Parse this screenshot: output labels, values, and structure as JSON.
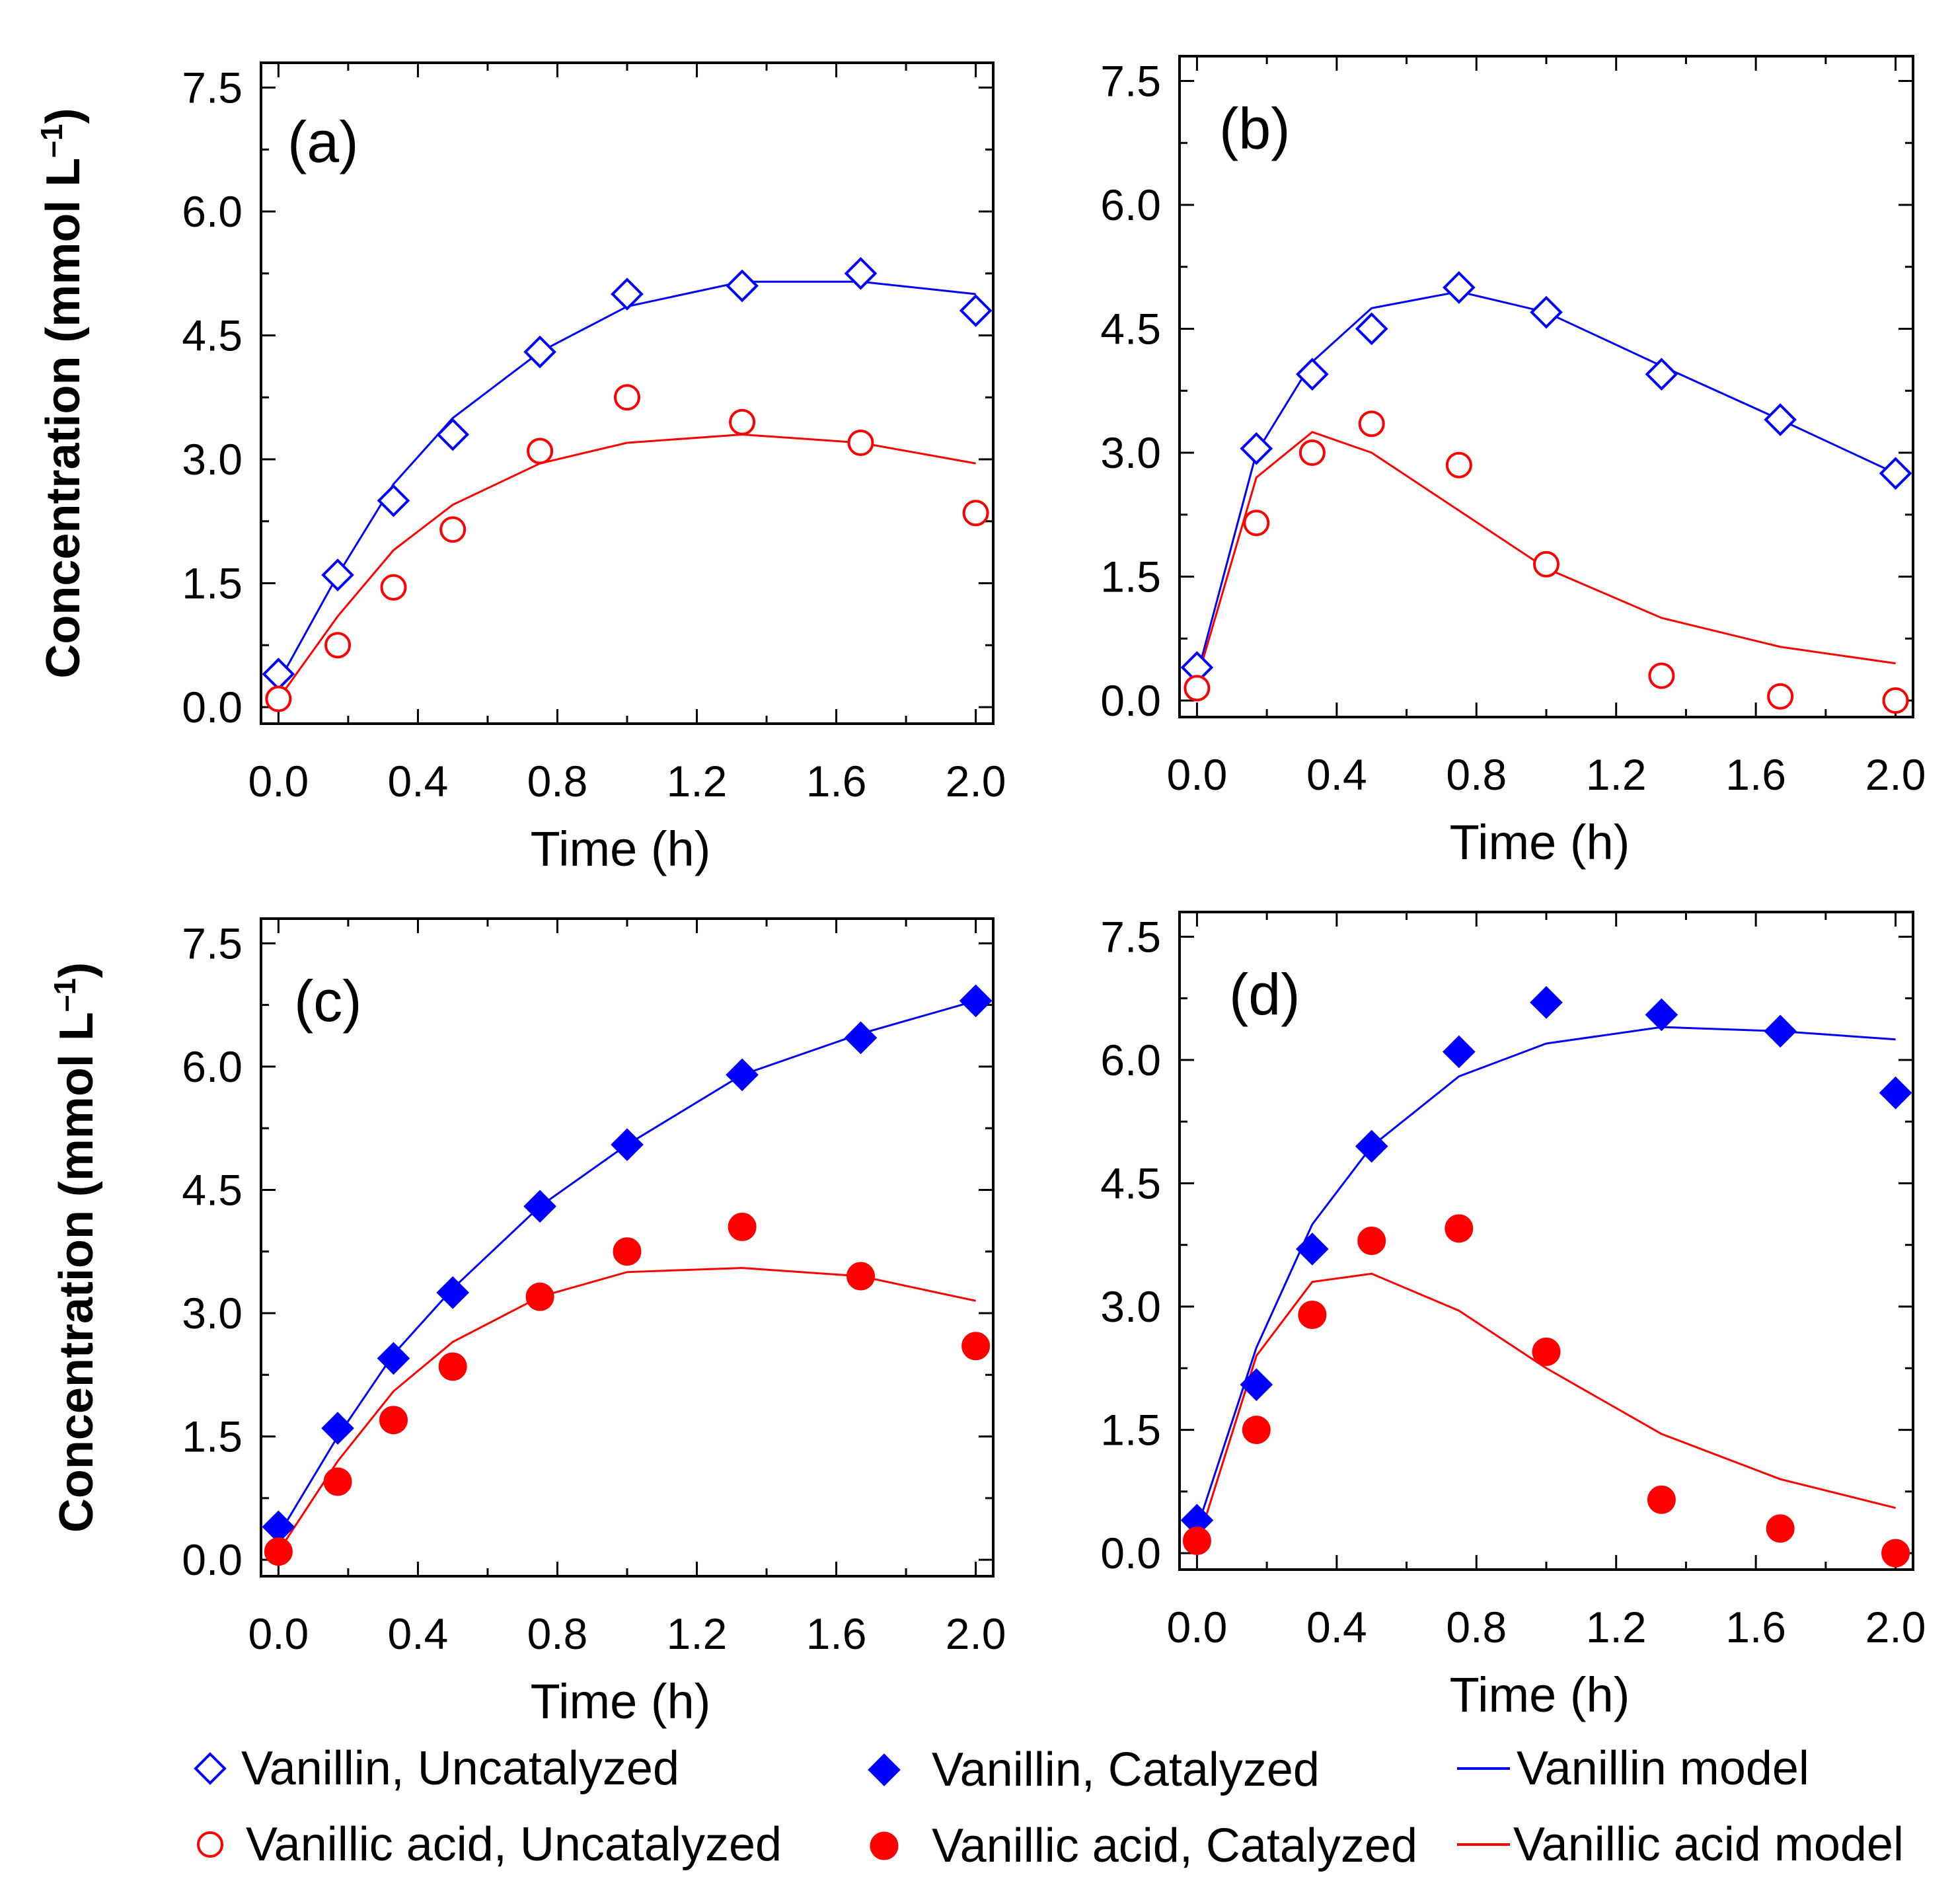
{
  "colors": {
    "vanillin": "#0000ff",
    "vanillic_acid": "#ff0000",
    "axis": "#000000"
  },
  "legend": {
    "items": [
      {
        "label": "Vanillin, Uncatalyzed",
        "marker": "diamond-open",
        "color": "#0000ff"
      },
      {
        "label": "Vanillic acid, Uncatalyzed",
        "marker": "circle-open",
        "color": "#ff0000"
      },
      {
        "label": "Vanillin, Catalyzed",
        "marker": "diamond-filled",
        "color": "#0000ff"
      },
      {
        "label": "Vanillic acid, Catalyzed",
        "marker": "circle-filled",
        "color": "#ff0000"
      },
      {
        "label": "Vanillin model",
        "marker": "line",
        "color": "#0000ff"
      },
      {
        "label": "Vanillic acid model",
        "marker": "line",
        "color": "#ff0000"
      }
    ]
  },
  "chart_data": [
    {
      "type": "scatter",
      "panel_label": "(a)",
      "xlabel": "Time (h)",
      "ylabel": "Concentration (mmol L",
      "ylabel_sup": "–1",
      "ylabel_close": ")",
      "xlim": [
        -0.05,
        2.05
      ],
      "ylim": [
        -0.2,
        7.8
      ],
      "xticks": [
        "0.0",
        "0.4",
        "0.8",
        "1.2",
        "1.6",
        "2.0"
      ],
      "yticks": [
        "0.0",
        "1.5",
        "3.0",
        "4.5",
        "6.0",
        "7.5"
      ],
      "catalyzed": false,
      "series": [
        {
          "name": "Vanillin, Uncatalyzed",
          "color": "#0000ff",
          "marker": "diamond-open",
          "x": [
            0.0,
            0.17,
            0.33,
            0.5,
            0.75,
            1.0,
            1.33,
            1.67,
            2.0
          ],
          "y": [
            0.4,
            1.6,
            2.5,
            3.3,
            4.3,
            5.0,
            5.1,
            5.25,
            4.8
          ]
        },
        {
          "name": "Vanillic acid, Uncatalyzed",
          "color": "#ff0000",
          "marker": "circle-open",
          "x": [
            0.0,
            0.17,
            0.33,
            0.5,
            0.75,
            1.0,
            1.33,
            1.67,
            2.0
          ],
          "y": [
            0.1,
            0.75,
            1.45,
            2.15,
            3.1,
            3.75,
            3.45,
            3.2,
            2.35
          ]
        },
        {
          "name": "Vanillin model",
          "color": "#0000ff",
          "marker": "line",
          "x": [
            0.0,
            0.17,
            0.33,
            0.5,
            0.75,
            1.0,
            1.33,
            1.67,
            2.0
          ],
          "y": [
            0.3,
            1.6,
            2.7,
            3.5,
            4.3,
            4.85,
            5.15,
            5.15,
            5.0
          ]
        },
        {
          "name": "Vanillic acid model",
          "color": "#ff0000",
          "marker": "line",
          "x": [
            0.0,
            0.17,
            0.33,
            0.5,
            0.75,
            1.0,
            1.33,
            1.67,
            2.0
          ],
          "y": [
            0.1,
            1.1,
            1.9,
            2.45,
            2.95,
            3.2,
            3.3,
            3.2,
            2.95
          ]
        }
      ]
    },
    {
      "type": "scatter",
      "panel_label": "(b)",
      "xlabel": "Time (h)",
      "ylabel": "",
      "ylabel_sup": "",
      "ylabel_close": "",
      "xlim": [
        -0.05,
        2.05
      ],
      "ylim": [
        -0.2,
        7.8
      ],
      "xticks": [
        "0.0",
        "0.4",
        "0.8",
        "1.2",
        "1.6",
        "2.0"
      ],
      "yticks": [
        "0.0",
        "1.5",
        "3.0",
        "4.5",
        "6.0",
        "7.5"
      ],
      "catalyzed": false,
      "series": [
        {
          "name": "Vanillin, Uncatalyzed",
          "color": "#0000ff",
          "marker": "diamond-open",
          "x": [
            0.0,
            0.17,
            0.33,
            0.5,
            0.75,
            1.0,
            1.33,
            1.67,
            2.0
          ],
          "y": [
            0.4,
            3.05,
            3.95,
            4.5,
            5.0,
            4.7,
            3.95,
            3.4,
            2.75
          ]
        },
        {
          "name": "Vanillic acid, Uncatalyzed",
          "color": "#ff0000",
          "marker": "circle-open",
          "x": [
            0.0,
            0.17,
            0.33,
            0.5,
            0.75,
            1.0,
            1.33,
            1.67,
            2.0
          ],
          "y": [
            0.15,
            2.15,
            3.0,
            3.35,
            2.85,
            1.65,
            0.3,
            0.05,
            0.0
          ]
        },
        {
          "name": "Vanillin model",
          "color": "#0000ff",
          "marker": "line",
          "x": [
            0.0,
            0.17,
            0.33,
            0.5,
            0.75,
            1.0,
            1.33,
            1.67,
            2.0
          ],
          "y": [
            0.3,
            3.0,
            4.1,
            4.75,
            4.95,
            4.7,
            4.05,
            3.4,
            2.75
          ]
        },
        {
          "name": "Vanillic acid model",
          "color": "#ff0000",
          "marker": "line",
          "x": [
            0.0,
            0.17,
            0.33,
            0.5,
            0.75,
            1.0,
            1.33,
            1.67,
            2.0
          ],
          "y": [
            0.25,
            2.7,
            3.25,
            3.0,
            2.3,
            1.6,
            1.0,
            0.65,
            0.45
          ]
        }
      ]
    },
    {
      "type": "scatter",
      "panel_label": "(c)",
      "xlabel": "Time (h)",
      "ylabel": "Concentration (mmol L",
      "ylabel_sup": "–1",
      "ylabel_close": ")",
      "xlim": [
        -0.05,
        2.05
      ],
      "ylim": [
        -0.2,
        7.8
      ],
      "xticks": [
        "0.0",
        "0.4",
        "0.8",
        "1.2",
        "1.6",
        "2.0"
      ],
      "yticks": [
        "0.0",
        "1.5",
        "3.0",
        "4.5",
        "6.0",
        "7.5"
      ],
      "catalyzed": true,
      "series": [
        {
          "name": "Vanillin, Catalyzed",
          "color": "#0000ff",
          "marker": "diamond-filled",
          "x": [
            0.0,
            0.17,
            0.33,
            0.5,
            0.75,
            1.0,
            1.33,
            1.67,
            2.0
          ],
          "y": [
            0.4,
            1.6,
            2.45,
            3.25,
            4.3,
            5.05,
            5.9,
            6.35,
            6.8
          ]
        },
        {
          "name": "Vanillic acid, Catalyzed",
          "color": "#ff0000",
          "marker": "circle-filled",
          "x": [
            0.0,
            0.17,
            0.33,
            0.5,
            0.75,
            1.0,
            1.33,
            1.67,
            2.0
          ],
          "y": [
            0.1,
            0.95,
            1.7,
            2.35,
            3.2,
            3.75,
            4.05,
            3.45,
            2.6
          ]
        },
        {
          "name": "Vanillin model",
          "color": "#0000ff",
          "marker": "line",
          "x": [
            0.0,
            0.17,
            0.33,
            0.5,
            0.75,
            1.0,
            1.33,
            1.67,
            2.0
          ],
          "y": [
            0.3,
            1.5,
            2.5,
            3.3,
            4.3,
            5.05,
            5.9,
            6.4,
            6.8
          ]
        },
        {
          "name": "Vanillic acid model",
          "color": "#ff0000",
          "marker": "line",
          "x": [
            0.0,
            0.17,
            0.33,
            0.5,
            0.75,
            1.0,
            1.33,
            1.67,
            2.0
          ],
          "y": [
            0.1,
            1.2,
            2.05,
            2.65,
            3.2,
            3.5,
            3.55,
            3.45,
            3.15
          ]
        }
      ]
    },
    {
      "type": "scatter",
      "panel_label": "(d)",
      "xlabel": "Time (h)",
      "ylabel": "",
      "ylabel_sup": "",
      "ylabel_close": "",
      "xlim": [
        -0.05,
        2.05
      ],
      "ylim": [
        -0.2,
        7.8
      ],
      "xticks": [
        "0.0",
        "0.4",
        "0.8",
        "1.2",
        "1.6",
        "2.0"
      ],
      "yticks": [
        "0.0",
        "1.5",
        "3.0",
        "4.5",
        "6.0",
        "7.5"
      ],
      "catalyzed": true,
      "series": [
        {
          "name": "Vanillin, Catalyzed",
          "color": "#0000ff",
          "marker": "diamond-filled",
          "x": [
            0.0,
            0.17,
            0.33,
            0.5,
            0.75,
            1.0,
            1.33,
            1.67,
            2.0
          ],
          "y": [
            0.4,
            2.05,
            3.7,
            4.95,
            6.1,
            6.7,
            6.55,
            6.35,
            5.6
          ]
        },
        {
          "name": "Vanillic acid, Catalyzed",
          "color": "#ff0000",
          "marker": "circle-filled",
          "x": [
            0.0,
            0.17,
            0.33,
            0.5,
            0.75,
            1.0,
            1.33,
            1.67,
            2.0
          ],
          "y": [
            0.15,
            1.5,
            2.9,
            3.8,
            3.95,
            2.45,
            0.65,
            0.3,
            0.0
          ]
        },
        {
          "name": "Vanillin model",
          "color": "#0000ff",
          "marker": "line",
          "x": [
            0.0,
            0.17,
            0.33,
            0.5,
            0.75,
            1.0,
            1.33,
            1.67,
            2.0
          ],
          "y": [
            0.3,
            2.5,
            4.0,
            4.95,
            5.8,
            6.2,
            6.4,
            6.35,
            6.25
          ]
        },
        {
          "name": "Vanillic acid model",
          "color": "#ff0000",
          "marker": "line",
          "x": [
            0.0,
            0.17,
            0.33,
            0.5,
            0.75,
            1.0,
            1.33,
            1.67,
            2.0
          ],
          "y": [
            0.1,
            2.4,
            3.3,
            3.4,
            2.95,
            2.25,
            1.45,
            0.9,
            0.55
          ]
        }
      ]
    }
  ]
}
